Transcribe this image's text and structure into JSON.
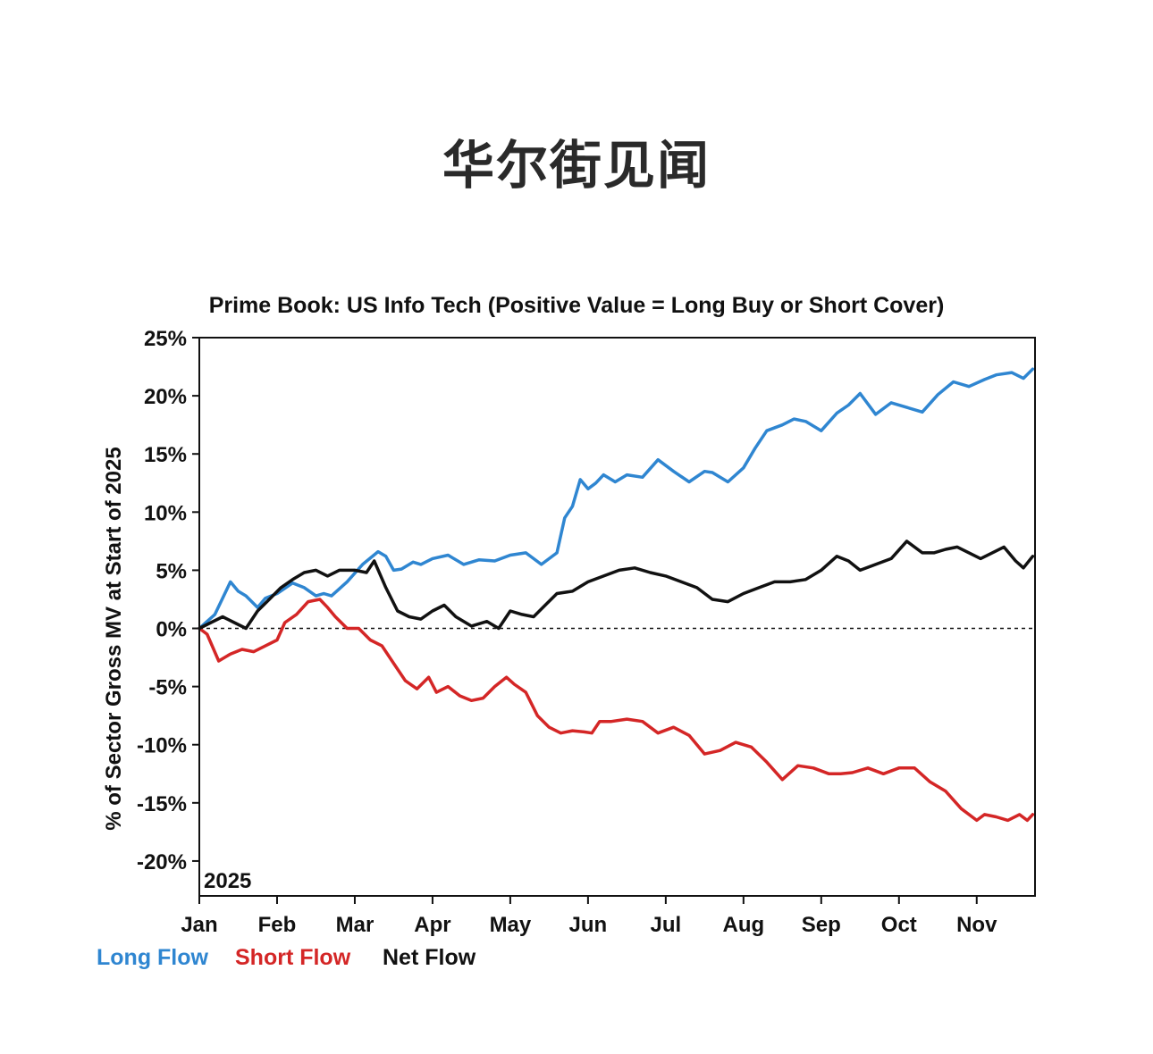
{
  "header": {
    "brand": "华尔街见闻"
  },
  "chart_data": {
    "type": "line",
    "title": "Prime Book: US Info Tech (Positive Value = Long Buy or Short Cover)",
    "xlabel": "",
    "ylabel": "% of Sector Gross MV at Start of 2025",
    "year_label": "2025",
    "ylim": [
      -23,
      25
    ],
    "xlim": [
      0,
      10.75
    ],
    "y_ticks": [
      25,
      20,
      15,
      10,
      5,
      0,
      -5,
      -10,
      -15,
      -20
    ],
    "y_tick_labels": [
      "25%",
      "20%",
      "15%",
      "10%",
      "5%",
      "0%",
      "-5%",
      "-10%",
      "-15%",
      "-20%"
    ],
    "x_ticks": [
      0,
      1,
      2,
      3,
      4,
      5,
      6,
      7,
      8,
      9,
      10
    ],
    "x_tick_labels": [
      "Jan",
      "Feb",
      "Mar",
      "Apr",
      "May",
      "Jun",
      "Jul",
      "Aug",
      "Sep",
      "Oct",
      "Nov"
    ],
    "zero_line": "dashed",
    "legend_position": "bottom-left",
    "series": [
      {
        "name": "Long Flow",
        "color": "#2f86d1",
        "x": [
          0,
          0.2,
          0.4,
          0.5,
          0.6,
          0.75,
          0.85,
          1.0,
          1.2,
          1.35,
          1.5,
          1.6,
          1.7,
          1.9,
          2.1,
          2.3,
          2.4,
          2.5,
          2.6,
          2.75,
          2.85,
          3.0,
          3.2,
          3.4,
          3.6,
          3.8,
          4.0,
          4.2,
          4.4,
          4.6,
          4.7,
          4.8,
          4.9,
          5.0,
          5.1,
          5.2,
          5.35,
          5.5,
          5.7,
          5.9,
          6.1,
          6.3,
          6.5,
          6.6,
          6.8,
          7.0,
          7.15,
          7.3,
          7.5,
          7.65,
          7.8,
          8.0,
          8.2,
          8.35,
          8.5,
          8.7,
          8.9,
          9.1,
          9.3,
          9.5,
          9.7,
          9.9,
          10.1,
          10.25,
          10.45,
          10.6,
          10.72
        ],
        "y": [
          0,
          1.2,
          4.0,
          3.2,
          2.8,
          1.8,
          2.6,
          3.0,
          3.9,
          3.5,
          2.8,
          3.0,
          2.8,
          4.0,
          5.5,
          6.6,
          6.2,
          5.0,
          5.1,
          5.7,
          5.5,
          6.0,
          6.3,
          5.5,
          5.9,
          5.8,
          6.3,
          6.5,
          5.5,
          6.5,
          9.5,
          10.5,
          12.8,
          12.0,
          12.5,
          13.2,
          12.6,
          13.2,
          13.0,
          14.5,
          13.5,
          12.6,
          13.5,
          13.4,
          12.6,
          13.8,
          15.5,
          17.0,
          17.5,
          18.0,
          17.8,
          17.0,
          18.5,
          19.2,
          20.2,
          18.4,
          19.4,
          19.0,
          18.6,
          20.1,
          21.2,
          20.8,
          21.4,
          21.8,
          22.0,
          21.5,
          22.3
        ]
      },
      {
        "name": "Short Flow",
        "color": "#d42626",
        "x": [
          0,
          0.1,
          0.25,
          0.4,
          0.55,
          0.7,
          0.85,
          1.0,
          1.1,
          1.25,
          1.4,
          1.55,
          1.65,
          1.75,
          1.9,
          2.05,
          2.2,
          2.35,
          2.5,
          2.65,
          2.8,
          2.95,
          3.05,
          3.2,
          3.35,
          3.5,
          3.65,
          3.8,
          3.95,
          4.05,
          4.2,
          4.35,
          4.5,
          4.65,
          4.8,
          4.95,
          5.05,
          5.15,
          5.3,
          5.5,
          5.7,
          5.9,
          6.1,
          6.3,
          6.5,
          6.7,
          6.9,
          7.1,
          7.3,
          7.5,
          7.7,
          7.9,
          8.1,
          8.25,
          8.4,
          8.6,
          8.8,
          9.0,
          9.2,
          9.4,
          9.6,
          9.8,
          10.0,
          10.1,
          10.25,
          10.4,
          10.55,
          10.65,
          10.72
        ],
        "y": [
          0,
          -0.5,
          -2.8,
          -2.2,
          -1.8,
          -2.0,
          -1.5,
          -1.0,
          0.5,
          1.2,
          2.3,
          2.5,
          1.8,
          1.0,
          0.0,
          0.0,
          -1.0,
          -1.5,
          -3.0,
          -4.5,
          -5.2,
          -4.2,
          -5.5,
          -5.0,
          -5.8,
          -6.2,
          -6.0,
          -5.0,
          -4.2,
          -4.8,
          -5.5,
          -7.5,
          -8.5,
          -9.0,
          -8.8,
          -8.9,
          -9.0,
          -8.0,
          -8.0,
          -7.8,
          -8.0,
          -9.0,
          -8.5,
          -9.2,
          -10.8,
          -10.5,
          -9.8,
          -10.2,
          -11.5,
          -13.0,
          -11.8,
          -12.0,
          -12.5,
          -12.5,
          -12.4,
          -12.0,
          -12.5,
          -12.0,
          -12.0,
          -13.2,
          -14.0,
          -15.5,
          -16.5,
          -16.0,
          -16.2,
          -16.5,
          -16.0,
          -16.5,
          -16.0
        ]
      },
      {
        "name": "Net Flow",
        "color": "#111111",
        "x": [
          0,
          0.15,
          0.3,
          0.45,
          0.6,
          0.75,
          0.9,
          1.05,
          1.2,
          1.35,
          1.5,
          1.65,
          1.8,
          2.0,
          2.15,
          2.25,
          2.4,
          2.55,
          2.7,
          2.85,
          3.0,
          3.15,
          3.3,
          3.5,
          3.7,
          3.85,
          4.0,
          4.15,
          4.3,
          4.45,
          4.6,
          4.8,
          5.0,
          5.2,
          5.4,
          5.6,
          5.8,
          6.0,
          6.2,
          6.4,
          6.6,
          6.8,
          7.0,
          7.2,
          7.4,
          7.6,
          7.8,
          8.0,
          8.2,
          8.35,
          8.5,
          8.7,
          8.9,
          9.1,
          9.3,
          9.45,
          9.6,
          9.75,
          9.9,
          10.05,
          10.2,
          10.35,
          10.5,
          10.6,
          10.72
        ],
        "y": [
          0,
          0.5,
          1.0,
          0.5,
          0.0,
          1.5,
          2.5,
          3.5,
          4.2,
          4.8,
          5.0,
          4.5,
          5.0,
          5.0,
          4.8,
          5.8,
          3.5,
          1.5,
          1.0,
          0.8,
          1.5,
          2.0,
          1.0,
          0.2,
          0.6,
          0.0,
          1.5,
          1.2,
          1.0,
          2.0,
          3.0,
          3.2,
          4.0,
          4.5,
          5.0,
          5.2,
          4.8,
          4.5,
          4.0,
          3.5,
          2.5,
          2.3,
          3.0,
          3.5,
          4.0,
          4.0,
          4.2,
          5.0,
          6.2,
          5.8,
          5.0,
          5.5,
          6.0,
          7.5,
          6.5,
          6.5,
          6.8,
          7.0,
          6.5,
          6.0,
          6.5,
          7.0,
          5.8,
          5.2,
          6.2
        ]
      }
    ]
  }
}
